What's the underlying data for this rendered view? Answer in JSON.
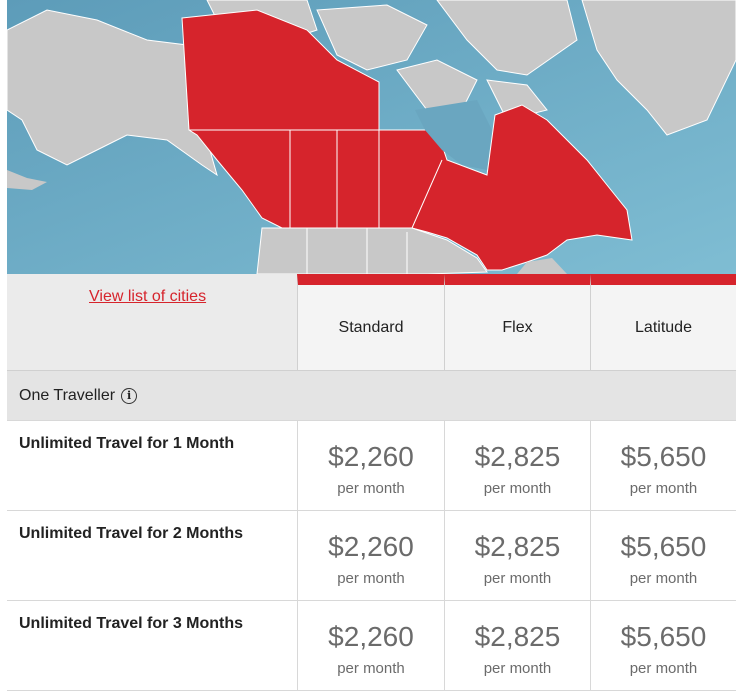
{
  "colors": {
    "accent": "#d6242c",
    "ocean": "#6aa6c0",
    "land": "#c8c8c8"
  },
  "header": {
    "link_label": "View list of cities",
    "columns": [
      "Standard",
      "Flex",
      "Latitude"
    ]
  },
  "section": {
    "title": "One Traveller",
    "info_icon": "info-icon",
    "info_glyph": "i"
  },
  "rows": [
    {
      "label": "Unlimited Travel for 1 Month",
      "prices": [
        {
          "amount": "$2,260",
          "unit": "per month"
        },
        {
          "amount": "$2,825",
          "unit": "per month"
        },
        {
          "amount": "$5,650",
          "unit": "per month"
        }
      ]
    },
    {
      "label": "Unlimited Travel for 2 Months",
      "prices": [
        {
          "amount": "$2,260",
          "unit": "per month"
        },
        {
          "amount": "$2,825",
          "unit": "per month"
        },
        {
          "amount": "$5,650",
          "unit": "per month"
        }
      ]
    },
    {
      "label": "Unlimited Travel for 3 Months",
      "prices": [
        {
          "amount": "$2,260",
          "unit": "per month"
        },
        {
          "amount": "$2,825",
          "unit": "per month"
        },
        {
          "amount": "$5,650",
          "unit": "per month"
        }
      ]
    }
  ]
}
